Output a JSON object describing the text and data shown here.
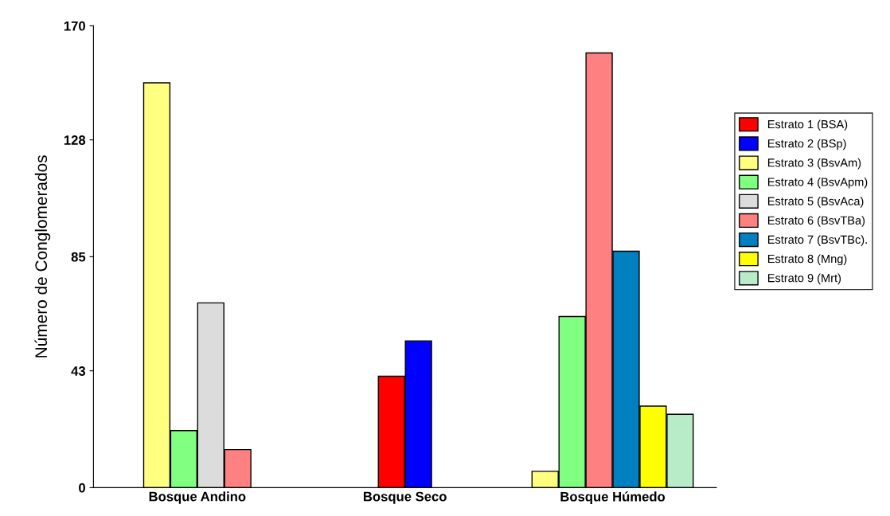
{
  "chart_data": {
    "type": "bar",
    "ylabel": "Número de Conglomerados",
    "categories": [
      "Bosque Andino",
      "Bosque Seco",
      "Bosque Húmedo"
    ],
    "series": [
      {
        "name": "Estrato 1 (BSA)",
        "color": "#ff0000",
        "values": [
          null,
          41,
          null
        ]
      },
      {
        "name": "Estrato 2 (BSp)",
        "color": "#0000ff",
        "values": [
          null,
          54,
          null
        ]
      },
      {
        "name": "Estrato 3 (BsvAm)",
        "color": "#ffff80",
        "values": [
          149,
          null,
          6
        ]
      },
      {
        "name": "Estrato 4 (BsvApm)",
        "color": "#80ff80",
        "values": [
          21,
          null,
          63
        ]
      },
      {
        "name": "Estrato 5 (BsvAca)",
        "color": "#dcdcdc",
        "values": [
          68,
          null,
          null
        ]
      },
      {
        "name": "Estrato 6 (BsvTBa)",
        "color": "#ff8080",
        "values": [
          14,
          null,
          160
        ]
      },
      {
        "name": "Estrato 7 (BsvTBc).",
        "color": "#0080c0",
        "values": [
          null,
          null,
          87
        ]
      },
      {
        "name": "Estrato 8 (Mng)",
        "color": "#ffff00",
        "values": [
          null,
          null,
          30
        ]
      },
      {
        "name": "Estrato 9 (Mrt)",
        "color": "#b8ecc8",
        "values": [
          null,
          null,
          27
        ]
      }
    ],
    "ylim": [
      0,
      170
    ],
    "yticks": [
      0,
      43,
      85,
      128,
      170
    ],
    "grid": false,
    "legend": "right"
  }
}
